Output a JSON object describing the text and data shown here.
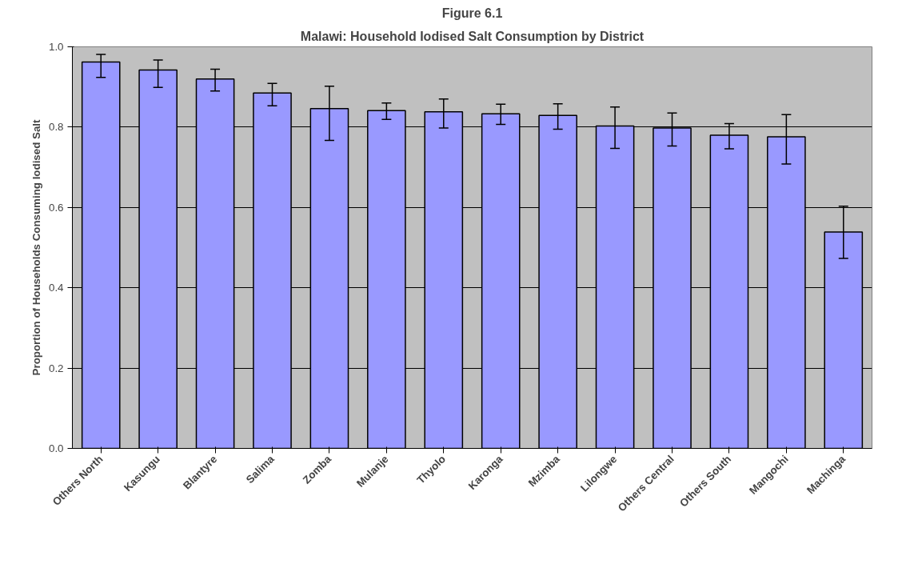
{
  "chart_data": {
    "type": "bar",
    "title": "Figure 6.1",
    "subtitle": "Malawi: Household Iodised Salt Consumption by District",
    "ylabel": "Proportion of Households Consuming Iodised Salt",
    "categories": [
      "Others North",
      "Kasungu",
      "Blantyre",
      "Salima",
      "Zomba",
      "Mulanje",
      "Thyolo",
      "Karonga",
      "Mzimba",
      "Lilongwe",
      "Others Central",
      "Others South",
      "Mangochi",
      "Machinga"
    ],
    "series": [
      {
        "color": "#9999ff",
        "values": [
          0.962,
          0.942,
          0.92,
          0.885,
          0.846,
          0.841,
          0.838,
          0.833,
          0.829,
          0.803,
          0.798,
          0.78,
          0.776,
          0.539
        ],
        "errors": [
          [
            0.924,
            0.981
          ],
          [
            0.899,
            0.967
          ],
          [
            0.89,
            0.944
          ],
          [
            0.853,
            0.909
          ],
          [
            0.767,
            0.902
          ],
          [
            0.819,
            0.86
          ],
          [
            0.798,
            0.87
          ],
          [
            0.807,
            0.857
          ],
          [
            0.795,
            0.858
          ],
          [
            0.747,
            0.85
          ],
          [
            0.753,
            0.835
          ],
          [
            0.746,
            0.809
          ],
          [
            0.708,
            0.831
          ],
          [
            0.473,
            0.603
          ]
        ]
      }
    ],
    "ylim": [
      0,
      1
    ],
    "yticks": [
      {
        "value": 0,
        "label": "0.0"
      },
      {
        "value": 0.2,
        "label": "0.2"
      },
      {
        "value": 0.4,
        "label": "0.4"
      },
      {
        "value": 0.6,
        "label": "0.6"
      },
      {
        "value": 0.8,
        "label": "0.8"
      },
      {
        "value": 1,
        "label": "1.0"
      }
    ],
    "grid": "y"
  }
}
